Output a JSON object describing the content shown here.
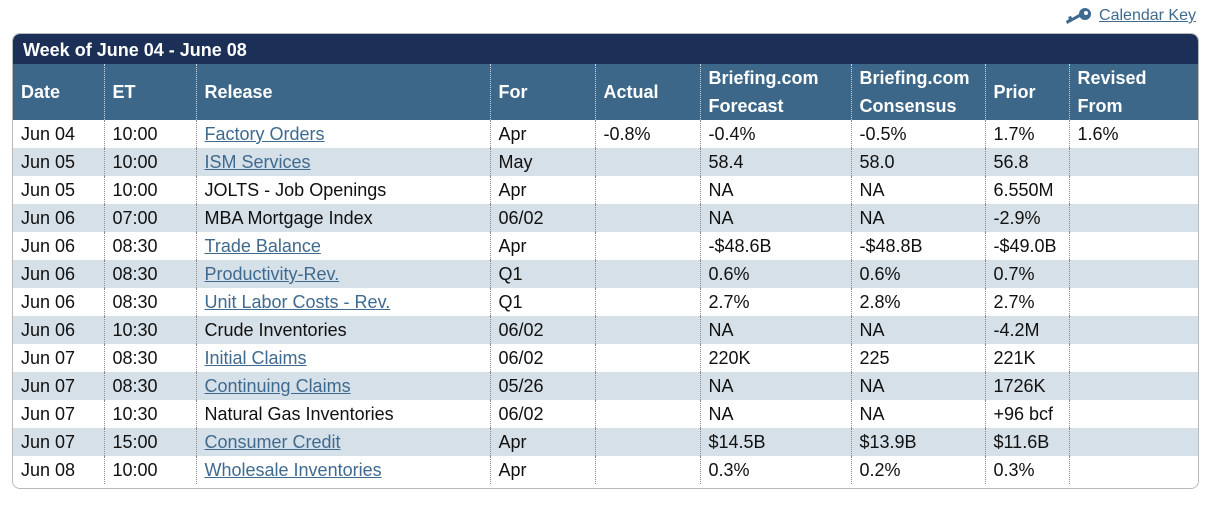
{
  "calendar_key_label": "Calendar Key",
  "week_title": "Week of June 04 - June 08",
  "columns": {
    "date": "Date",
    "et": "ET",
    "release": "Release",
    "for": "For",
    "actual": "Actual",
    "forecast_1": "Briefing.com",
    "forecast_2": "Forecast",
    "consensus_1": "Briefing.com",
    "consensus_2": "Consensus",
    "prior": "Prior",
    "revised_1": "Revised",
    "revised_2": "From"
  },
  "rows": [
    {
      "date": "Jun 04",
      "et": "10:00",
      "release": "Factory Orders",
      "link": true,
      "for": "Apr",
      "actual": "-0.8%",
      "forecast": "-0.4%",
      "consensus": "-0.5%",
      "prior": "1.7%",
      "revised": "1.6%"
    },
    {
      "date": "Jun 05",
      "et": "10:00",
      "release": "ISM Services",
      "link": true,
      "for": "May",
      "actual": "",
      "forecast": "58.4",
      "consensus": "58.0",
      "prior": "56.8",
      "revised": ""
    },
    {
      "date": "Jun 05",
      "et": "10:00",
      "release": "JOLTS - Job Openings",
      "link": false,
      "for": "Apr",
      "actual": "",
      "forecast": "NA",
      "consensus": "NA",
      "prior": "6.550M",
      "revised": ""
    },
    {
      "date": "Jun 06",
      "et": "07:00",
      "release": "MBA Mortgage Index",
      "link": false,
      "for": "06/02",
      "actual": "",
      "forecast": "NA",
      "consensus": "NA",
      "prior": "-2.9%",
      "revised": ""
    },
    {
      "date": "Jun 06",
      "et": "08:30",
      "release": "Trade Balance",
      "link": true,
      "for": "Apr",
      "actual": "",
      "forecast": "-$48.6B",
      "consensus": "-$48.8B",
      "prior": "-$49.0B",
      "revised": ""
    },
    {
      "date": "Jun 06",
      "et": "08:30",
      "release": "Productivity-Rev.",
      "link": true,
      "for": "Q1",
      "actual": "",
      "forecast": "0.6%",
      "consensus": "0.6%",
      "prior": "0.7%",
      "revised": ""
    },
    {
      "date": "Jun 06",
      "et": "08:30",
      "release": "Unit Labor Costs - Rev.",
      "link": true,
      "for": "Q1",
      "actual": "",
      "forecast": "2.7%",
      "consensus": "2.8%",
      "prior": "2.7%",
      "revised": ""
    },
    {
      "date": "Jun 06",
      "et": "10:30",
      "release": "Crude Inventories",
      "link": false,
      "for": "06/02",
      "actual": "",
      "forecast": "NA",
      "consensus": "NA",
      "prior": "-4.2M",
      "revised": ""
    },
    {
      "date": "Jun 07",
      "et": "08:30",
      "release": "Initial Claims",
      "link": true,
      "for": "06/02",
      "actual": "",
      "forecast": "220K",
      "consensus": "225",
      "prior": "221K",
      "revised": ""
    },
    {
      "date": "Jun 07",
      "et": "08:30",
      "release": "Continuing Claims",
      "link": true,
      "for": "05/26",
      "actual": "",
      "forecast": "NA",
      "consensus": "NA",
      "prior": "1726K",
      "revised": ""
    },
    {
      "date": "Jun 07",
      "et": "10:30",
      "release": "Natural Gas Inventories",
      "link": false,
      "for": "06/02",
      "actual": "",
      "forecast": "NA",
      "consensus": "NA",
      "prior": "+96 bcf",
      "revised": ""
    },
    {
      "date": "Jun 07",
      "et": "15:00",
      "release": "Consumer Credit",
      "link": true,
      "for": "Apr",
      "actual": "",
      "forecast": "$14.5B",
      "consensus": "$13.9B",
      "prior": "$11.6B",
      "revised": ""
    },
    {
      "date": "Jun 08",
      "et": "10:00",
      "release": "Wholesale Inventories",
      "link": true,
      "for": "Apr",
      "actual": "",
      "forecast": "0.3%",
      "consensus": "0.2%",
      "prior": "0.3%",
      "revised": ""
    }
  ]
}
